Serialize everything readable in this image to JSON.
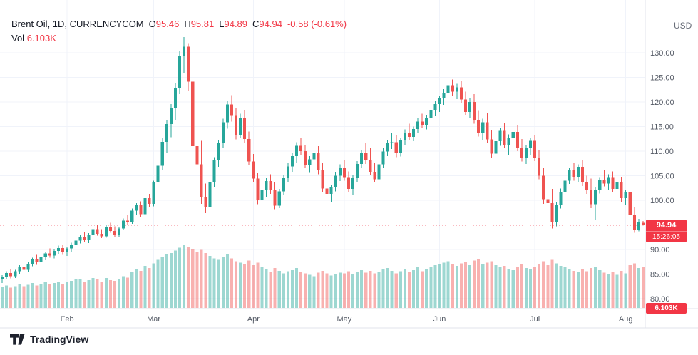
{
  "header": {
    "symbol_title": "Brent Oil, 1D, CURRENCYCOM",
    "ohlc": {
      "o_label": "O",
      "o": "95.46",
      "h_label": "H",
      "h": "95.81",
      "l_label": "L",
      "l": "94.89",
      "c_label": "C",
      "c": "94.94",
      "change": "-0.58 (-0.61%)"
    },
    "vol_label": "Vol",
    "vol_value": "6.103K"
  },
  "axis": {
    "currency": "USD",
    "price_badge": "94.94",
    "countdown": "15:26:05",
    "volume_badge": "6.103K"
  },
  "footer": {
    "logo_text": "TradingView"
  },
  "colors": {
    "up": "#26a69a",
    "down": "#ef5350",
    "vol_up": "rgba(38,166,154,0.45)",
    "vol_down": "rgba(239,83,80,0.45)",
    "badge": "#f23645",
    "grid": "#f0f3fa",
    "separator": "#e0e3eb",
    "axis_text": "#555b66",
    "price_line": "#f23645"
  },
  "chart_data": {
    "type": "candlestick",
    "title": "Brent Oil, 1D, CURRENCYCOM",
    "symbol": "Brent Oil",
    "interval": "1D",
    "exchange": "CURRENCYCOM",
    "currency": "USD",
    "last": {
      "open": 95.46,
      "high": 95.81,
      "low": 94.89,
      "close": 94.94,
      "change": -0.58,
      "change_pct": -0.61,
      "volume_k": 6.103
    },
    "y_ticks": [
      80,
      85,
      90,
      95,
      100,
      105,
      110,
      115,
      120,
      125,
      130
    ],
    "y_range": [
      78,
      134.5
    ],
    "months": [
      {
        "label": "Feb",
        "index": 15
      },
      {
        "label": "Mar",
        "index": 35
      },
      {
        "label": "Apr",
        "index": 58
      },
      {
        "label": "May",
        "index": 79
      },
      {
        "label": "Jun",
        "index": 101
      },
      {
        "label": "Jul",
        "index": 123
      },
      {
        "label": "Aug",
        "index": 144
      }
    ],
    "candles": [
      [
        83.9,
        84.8,
        83.2,
        84.5,
        3.1
      ],
      [
        84.5,
        85.6,
        84.0,
        85.2,
        3.3
      ],
      [
        85.2,
        86.0,
        84.1,
        84.6,
        3.0
      ],
      [
        84.6,
        85.9,
        84.2,
        85.6,
        3.2
      ],
      [
        85.6,
        86.8,
        85.1,
        86.4,
        3.5
      ],
      [
        86.4,
        87.3,
        85.4,
        85.9,
        3.2
      ],
      [
        85.9,
        87.5,
        85.5,
        87.1,
        3.4
      ],
      [
        87.1,
        88.3,
        86.6,
        88.0,
        3.7
      ],
      [
        88.0,
        88.9,
        86.9,
        87.4,
        3.3
      ],
      [
        87.4,
        88.8,
        86.8,
        88.4,
        3.6
      ],
      [
        88.4,
        89.6,
        87.8,
        89.2,
        3.8
      ],
      [
        89.2,
        90.2,
        88.3,
        88.8,
        3.5
      ],
      [
        88.8,
        90.1,
        88.2,
        89.7,
        3.7
      ],
      [
        89.7,
        90.8,
        89.0,
        90.3,
        3.9
      ],
      [
        90.3,
        91.0,
        88.9,
        89.4,
        3.6
      ],
      [
        89.4,
        90.6,
        88.7,
        90.2,
        3.8
      ],
      [
        90.2,
        91.4,
        89.5,
        91.0,
        4.0
      ],
      [
        91.0,
        92.2,
        90.3,
        91.8,
        4.2
      ],
      [
        91.8,
        93.0,
        91.2,
        92.6,
        4.3
      ],
      [
        92.6,
        93.6,
        91.5,
        91.9,
        3.9
      ],
      [
        91.9,
        93.3,
        91.3,
        93.0,
        4.1
      ],
      [
        93.0,
        94.4,
        92.5,
        94.1,
        4.4
      ],
      [
        94.1,
        95.0,
        92.8,
        93.2,
        4.2
      ],
      [
        93.2,
        94.1,
        92.3,
        92.7,
        3.9
      ],
      [
        92.7,
        94.9,
        92.4,
        94.5,
        4.4
      ],
      [
        94.5,
        95.4,
        93.4,
        93.8,
        4.1
      ],
      [
        93.8,
        94.7,
        92.5,
        92.9,
        4.0
      ],
      [
        92.9,
        94.6,
        92.6,
        94.3,
        4.3
      ],
      [
        94.3,
        96.3,
        93.9,
        95.9,
        4.7
      ],
      [
        95.9,
        97.1,
        95.0,
        95.5,
        4.5
      ],
      [
        95.5,
        98.3,
        95.2,
        97.9,
        5.3
      ],
      [
        97.9,
        99.4,
        97.1,
        99.0,
        5.7
      ],
      [
        99.0,
        99.8,
        96.6,
        97.2,
        5.5
      ],
      [
        97.2,
        100.8,
        96.7,
        100.4,
        6.2
      ],
      [
        100.4,
        101.3,
        98.7,
        99.3,
        5.9
      ],
      [
        99.3,
        104.0,
        98.8,
        103.6,
        6.6
      ],
      [
        103.6,
        107.7,
        102.3,
        107.0,
        7.1
      ],
      [
        107.0,
        112.6,
        106.1,
        111.9,
        7.5
      ],
      [
        111.9,
        116.3,
        109.6,
        115.5,
        7.9
      ],
      [
        115.5,
        119.6,
        112.8,
        118.7,
        8.1
      ],
      [
        118.7,
        123.8,
        116.3,
        122.9,
        8.5
      ],
      [
        122.9,
        130.3,
        121.6,
        129.4,
        8.9
      ],
      [
        129.4,
        133.2,
        125.8,
        131.2,
        9.3
      ],
      [
        131.2,
        131.8,
        122.3,
        124.1,
        9.0
      ],
      [
        124.1,
        127.3,
        108.3,
        111.0,
        8.7
      ],
      [
        111.0,
        113.8,
        105.9,
        107.3,
        8.3
      ],
      [
        107.3,
        112.1,
        99.3,
        100.6,
        8.6
      ],
      [
        100.6,
        103.4,
        97.4,
        98.7,
        8.1
      ],
      [
        98.7,
        104.3,
        98.0,
        103.7,
        7.7
      ],
      [
        103.7,
        108.8,
        102.6,
        108.1,
        7.3
      ],
      [
        108.1,
        112.3,
        106.8,
        111.7,
        7.1
      ],
      [
        111.7,
        116.6,
        110.7,
        115.9,
        7.5
      ],
      [
        115.9,
        120.3,
        114.6,
        119.5,
        7.9
      ],
      [
        119.5,
        121.4,
        116.0,
        117.2,
        7.3
      ],
      [
        117.2,
        118.7,
        112.4,
        113.3,
        6.9
      ],
      [
        113.3,
        117.6,
        112.7,
        116.8,
        6.7
      ],
      [
        116.8,
        118.3,
        111.6,
        112.5,
        6.5
      ],
      [
        112.5,
        114.0,
        107.1,
        107.9,
        7.0
      ],
      [
        107.9,
        109.4,
        103.7,
        104.4,
        6.3
      ],
      [
        104.4,
        105.6,
        99.2,
        100.1,
        6.7
      ],
      [
        100.1,
        102.7,
        98.5,
        102.0,
        6.1
      ],
      [
        102.0,
        104.6,
        100.7,
        103.9,
        5.7
      ],
      [
        103.9,
        105.3,
        101.3,
        102.1,
        5.3
      ],
      [
        102.1,
        103.7,
        98.2,
        98.9,
        5.9
      ],
      [
        98.9,
        102.3,
        98.4,
        101.8,
        5.5
      ],
      [
        101.8,
        105.1,
        101.0,
        104.5,
        5.1
      ],
      [
        104.5,
        107.6,
        103.6,
        106.9,
        5.4
      ],
      [
        106.9,
        109.7,
        105.8,
        109.0,
        5.6
      ],
      [
        109.0,
        111.8,
        107.7,
        111.1,
        5.9
      ],
      [
        111.1,
        112.7,
        109.3,
        110.0,
        5.3
      ],
      [
        110.0,
        111.2,
        106.5,
        107.1,
        5.1
      ],
      [
        107.1,
        109.0,
        105.7,
        108.3,
        4.9
      ],
      [
        108.3,
        110.4,
        107.2,
        109.6,
        4.7
      ],
      [
        109.6,
        111.0,
        105.3,
        106.2,
        5.2
      ],
      [
        106.2,
        107.6,
        101.7,
        102.4,
        5.5
      ],
      [
        102.4,
        104.7,
        100.3,
        101.3,
        5.1
      ],
      [
        101.3,
        103.2,
        99.6,
        102.6,
        4.8
      ],
      [
        102.6,
        105.8,
        101.8,
        105.0,
        5.0
      ],
      [
        105.0,
        107.3,
        103.9,
        106.7,
        5.2
      ],
      [
        106.7,
        108.1,
        104.0,
        104.7,
        5.1
      ],
      [
        104.7,
        105.9,
        101.6,
        102.3,
        5.4
      ],
      [
        102.3,
        105.2,
        101.0,
        104.6,
        5.0
      ],
      [
        104.6,
        108.0,
        103.7,
        107.4,
        5.3
      ],
      [
        107.4,
        110.3,
        106.6,
        109.7,
        5.6
      ],
      [
        109.7,
        111.6,
        107.4,
        108.1,
        5.2
      ],
      [
        108.1,
        110.7,
        105.1,
        105.8,
        5.5
      ],
      [
        105.8,
        107.7,
        103.6,
        104.3,
        5.1
      ],
      [
        104.3,
        107.9,
        103.8,
        107.3,
        5.3
      ],
      [
        107.3,
        110.6,
        106.7,
        109.9,
        5.7
      ],
      [
        109.9,
        112.3,
        109.0,
        111.7,
        5.9
      ],
      [
        111.7,
        113.6,
        110.4,
        111.8,
        5.5
      ],
      [
        111.8,
        113.3,
        108.8,
        109.6,
        5.1
      ],
      [
        109.6,
        112.7,
        108.9,
        112.2,
        5.4
      ],
      [
        112.2,
        114.4,
        111.3,
        113.8,
        5.8
      ],
      [
        113.8,
        115.6,
        112.2,
        112.9,
        5.3
      ],
      [
        112.9,
        115.0,
        112.0,
        114.5,
        5.6
      ],
      [
        114.5,
        116.7,
        113.6,
        116.0,
        6.0
      ],
      [
        116.0,
        117.6,
        114.7,
        115.3,
        5.4
      ],
      [
        115.3,
        117.3,
        114.4,
        116.8,
        5.7
      ],
      [
        116.8,
        119.0,
        115.9,
        118.4,
        6.1
      ],
      [
        118.4,
        120.2,
        117.1,
        119.6,
        6.3
      ],
      [
        119.6,
        121.3,
        118.0,
        120.7,
        6.5
      ],
      [
        120.7,
        122.6,
        119.4,
        121.9,
        6.7
      ],
      [
        121.9,
        124.1,
        120.8,
        123.4,
        6.9
      ],
      [
        123.4,
        124.6,
        121.3,
        122.1,
        6.4
      ],
      [
        122.1,
        123.7,
        120.6,
        123.0,
        6.2
      ],
      [
        123.0,
        124.3,
        119.7,
        120.5,
        6.6
      ],
      [
        120.5,
        122.1,
        117.3,
        118.0,
        6.8
      ],
      [
        118.0,
        120.7,
        116.8,
        120.0,
        6.3
      ],
      [
        120.0,
        121.6,
        115.6,
        116.3,
        7.0
      ],
      [
        116.3,
        118.2,
        113.0,
        113.7,
        7.2
      ],
      [
        113.7,
        116.6,
        112.3,
        115.9,
        6.5
      ],
      [
        115.9,
        117.7,
        111.7,
        112.4,
        6.7
      ],
      [
        112.4,
        114.3,
        108.7,
        109.5,
        6.9
      ],
      [
        109.5,
        112.6,
        108.3,
        112.0,
        6.3
      ],
      [
        112.0,
        114.7,
        111.1,
        114.1,
        6.0
      ],
      [
        114.1,
        115.7,
        110.6,
        111.3,
        6.2
      ],
      [
        111.3,
        113.4,
        109.2,
        112.7,
        5.8
      ],
      [
        112.7,
        114.6,
        111.5,
        113.9,
        5.6
      ],
      [
        113.9,
        115.3,
        110.0,
        110.7,
        6.1
      ],
      [
        110.7,
        112.5,
        107.9,
        108.6,
        6.4
      ],
      [
        108.6,
        111.3,
        107.4,
        110.6,
        5.9
      ],
      [
        110.6,
        112.7,
        109.3,
        112.1,
        5.7
      ],
      [
        112.1,
        113.3,
        108.0,
        108.7,
        6.1
      ],
      [
        108.7,
        110.2,
        104.3,
        105.0,
        6.5
      ],
      [
        105.0,
        106.6,
        99.3,
        100.2,
        6.9
      ],
      [
        100.2,
        103.0,
        98.7,
        99.4,
        6.3
      ],
      [
        99.4,
        102.3,
        94.3,
        95.6,
        7.1
      ],
      [
        95.6,
        99.6,
        94.7,
        99.0,
        6.6
      ],
      [
        99.0,
        102.4,
        98.3,
        101.7,
        6.2
      ],
      [
        101.7,
        104.6,
        100.7,
        104.0,
        6.0
      ],
      [
        104.0,
        106.7,
        103.3,
        106.1,
        5.8
      ],
      [
        106.1,
        107.7,
        104.0,
        104.8,
        5.5
      ],
      [
        104.8,
        107.3,
        103.7,
        106.8,
        5.3
      ],
      [
        106.8,
        108.2,
        102.9,
        103.6,
        5.7
      ],
      [
        103.6,
        105.0,
        101.3,
        102.0,
        5.4
      ],
      [
        102.0,
        104.4,
        98.4,
        99.2,
        5.9
      ],
      [
        99.2,
        102.7,
        96.1,
        102.2,
        6.1
      ],
      [
        102.2,
        104.7,
        101.4,
        104.1,
        5.6
      ],
      [
        104.1,
        106.1,
        102.8,
        103.4,
        5.2
      ],
      [
        103.4,
        105.3,
        102.2,
        104.7,
        5.0
      ],
      [
        104.7,
        105.9,
        101.6,
        102.3,
        5.3
      ],
      [
        102.3,
        104.2,
        100.7,
        103.6,
        4.9
      ],
      [
        103.6,
        104.8,
        99.7,
        100.4,
        5.5
      ],
      [
        100.4,
        102.1,
        99.0,
        101.6,
        5.1
      ],
      [
        101.6,
        102.7,
        96.3,
        97.1,
        6.3
      ],
      [
        97.1,
        98.6,
        93.4,
        94.0,
        6.6
      ],
      [
        94.0,
        96.2,
        93.7,
        95.5,
        5.9
      ],
      [
        95.46,
        95.81,
        94.89,
        94.94,
        6.103
      ]
    ]
  }
}
